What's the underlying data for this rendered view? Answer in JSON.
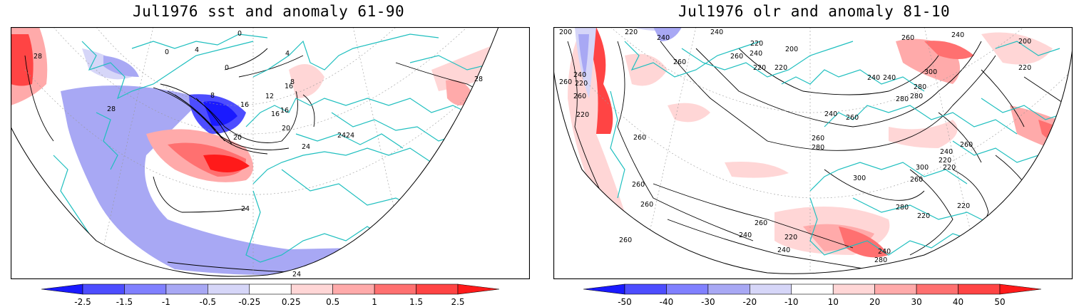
{
  "panels": [
    {
      "title": "Jul1976 sst and anomaly 61-90",
      "variable": "sst",
      "colorbar": {
        "labels": [
          "-2.5",
          "-1.5",
          "-1",
          "-0.5",
          "-0.25",
          "0.25",
          "0.5",
          "1",
          "1.5",
          "2.5"
        ],
        "colors": [
          "#1a1aff",
          "#4d4dff",
          "#8080ff",
          "#a8a8f4",
          "#d6d6f8",
          "#ffffff",
          "#ffd6d6",
          "#ffaaaa",
          "#ff7070",
          "#ff4444",
          "#ff1a1a"
        ]
      },
      "contour_labels": [
        "28",
        "28",
        "28",
        "24",
        "24",
        "24",
        "24",
        "24",
        "20",
        "20",
        "16",
        "16",
        "16",
        "12",
        "8",
        "8",
        "4",
        "4",
        "0",
        "0",
        "0",
        "16"
      ]
    },
    {
      "title": "Jul1976 olr and anomaly 81-10",
      "variable": "olr",
      "colorbar": {
        "labels": [
          "-50",
          "-40",
          "-30",
          "-20",
          "-10",
          "10",
          "20",
          "30",
          "40",
          "50"
        ],
        "colors": [
          "#1a1aff",
          "#4d4dff",
          "#8080ff",
          "#a8a8f4",
          "#d6d6f8",
          "#ffffff",
          "#ffd6d6",
          "#ffaaaa",
          "#ff7070",
          "#ff4444",
          "#ff1a1a"
        ]
      },
      "contour_labels": [
        "200",
        "220",
        "240",
        "240",
        "260",
        "220",
        "240",
        "260",
        "220",
        "220",
        "200",
        "240",
        "260",
        "240",
        "300",
        "220",
        "260",
        "280",
        "200",
        "220",
        "220",
        "240",
        "260",
        "240",
        "260",
        "280",
        "280",
        "260",
        "260",
        "300",
        "300",
        "280",
        "240",
        "260",
        "240",
        "220",
        "220",
        "260",
        "280",
        "260",
        "240",
        "240",
        "220",
        "220",
        "260",
        "220",
        "260",
        "240",
        "260",
        "280"
      ]
    }
  ],
  "colors": {
    "coast": "#1fbfbf",
    "contour": "#000000",
    "grid": "#999999"
  }
}
